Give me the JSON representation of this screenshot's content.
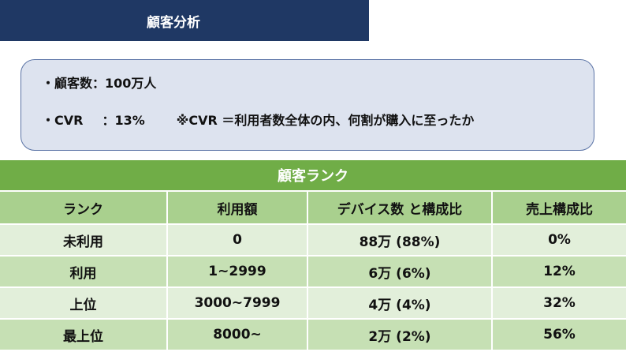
{
  "header": {
    "title": "顧客分析"
  },
  "summary": {
    "customers_label": "・顧客数：",
    "customers_value": "100万人",
    "cvr_label": "・CVR",
    "cvr_sep": "：",
    "cvr_value": "13%",
    "cvr_note": "※CVR ＝利用者数全体の内、何割が購入に至ったか"
  },
  "table": {
    "caption": "顧客ランク",
    "columns": [
      "ランク",
      "利用額",
      "デバイス数 と構成比",
      "売上構成比"
    ],
    "rows": [
      [
        "未利用",
        "0",
        "88万 (88%)",
        "0%"
      ],
      [
        "利用",
        "1~2999",
        "6万 (6%)",
        "12%"
      ],
      [
        "上位",
        "3000~7999",
        "4万 (4%)",
        "32%"
      ],
      [
        "最上位",
        "8000~",
        "2万 (2%)",
        "56%"
      ]
    ]
  }
}
